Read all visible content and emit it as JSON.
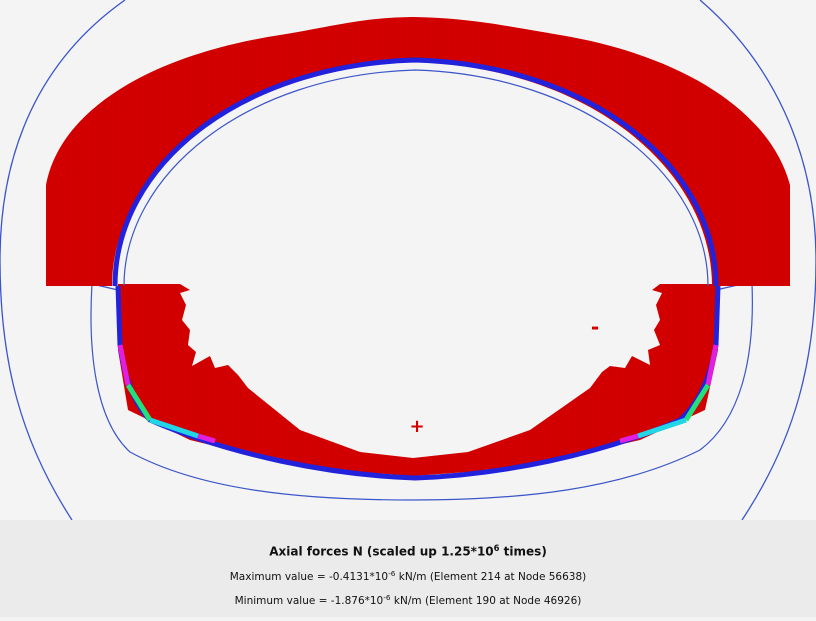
{
  "caption": {
    "title_pre": "Axial forces N (scaled up 1.25*10",
    "title_exp": "6",
    "title_post": " times)",
    "max_pre": "Maximum value = -0.4131*10",
    "max_exp": "-6",
    "max_post": " kN/m (Element 214 at Node 56638)",
    "min_pre": "Minimum value = -1.876*10",
    "min_exp": "-6",
    "min_post": " kN/m (Element 190 at Node 46926)"
  },
  "markers": {
    "plus": "+",
    "minus": "-"
  },
  "colors": {
    "force_fill": "#d40000",
    "lining": "#2222dd",
    "outline": "#3b55c9",
    "segment_magenta": "#e020e0",
    "segment_green": "#22e07a",
    "segment_cyan": "#22d6e6",
    "background": "#f4f4f4",
    "footer": "#ebebeb"
  }
}
